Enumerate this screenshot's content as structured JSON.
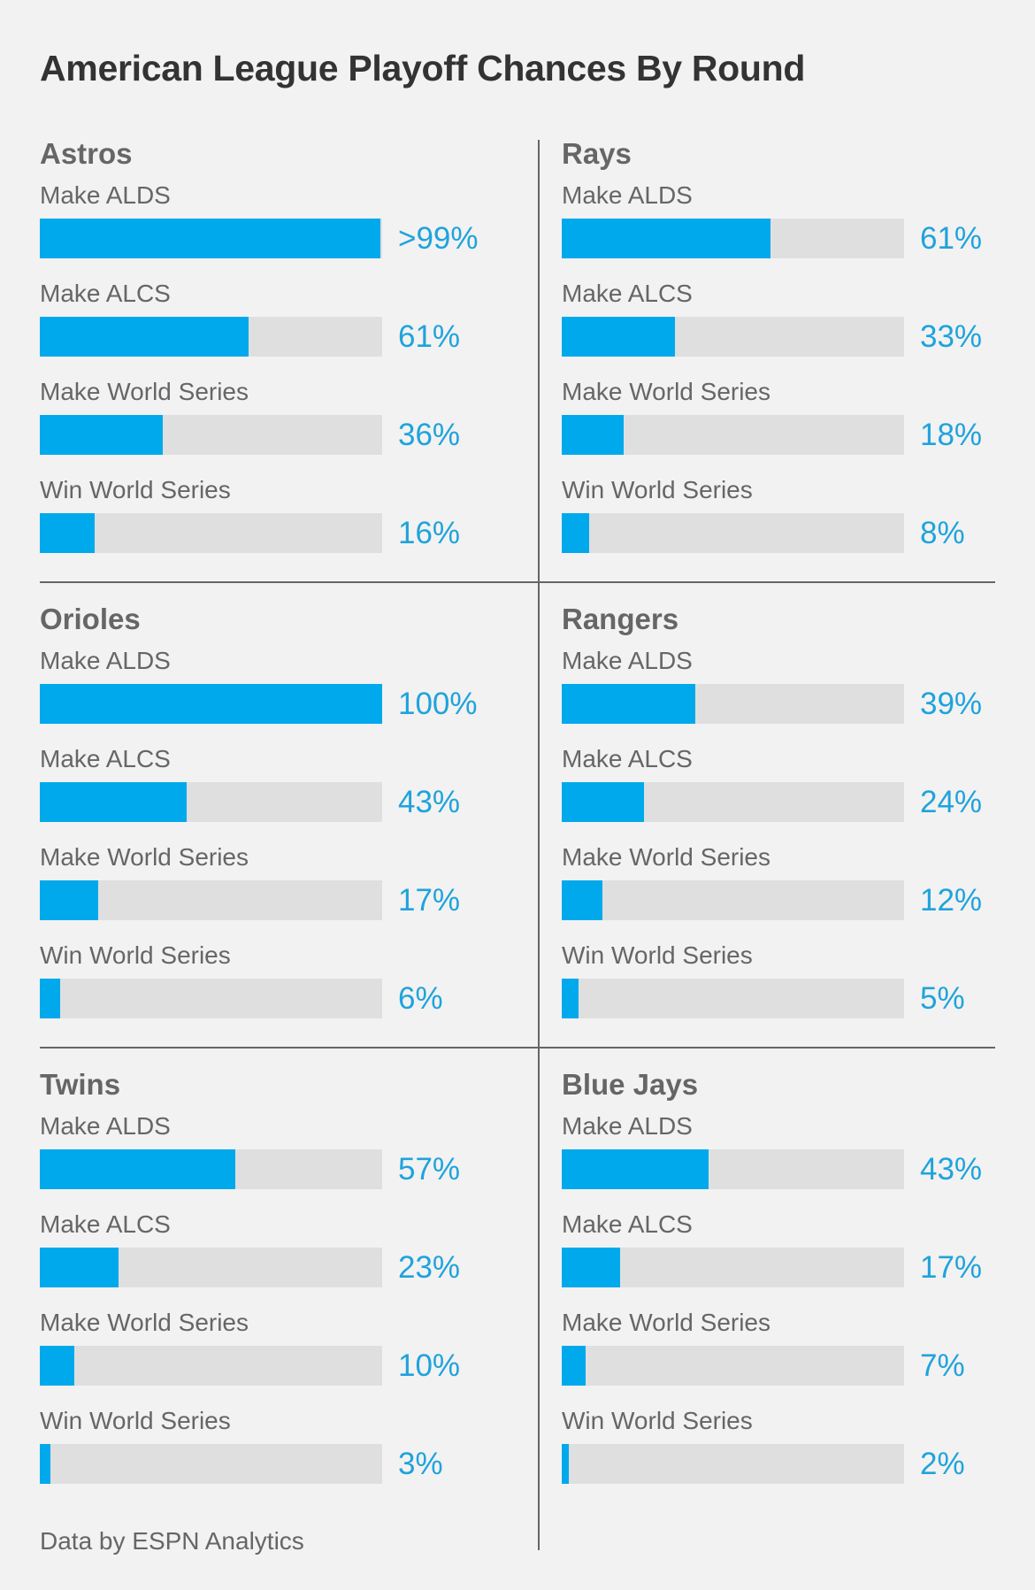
{
  "chart_data": {
    "type": "bar",
    "title": "American League Playoff Chances By Round",
    "footer": "Data by ESPN Analytics",
    "xlim": [
      0,
      100
    ],
    "colors": {
      "fill": "#00a9ec",
      "track": "#dfdfdf",
      "value_text": "#1fa3dc"
    },
    "categories": [
      "Make ALDS",
      "Make ALCS",
      "Make World Series",
      "Win World Series"
    ],
    "teams": [
      {
        "name": "Astros",
        "values": [
          99.5,
          61,
          36,
          16
        ],
        "labels": [
          ">99%",
          "61%",
          "36%",
          "16%"
        ]
      },
      {
        "name": "Rays",
        "values": [
          61,
          33,
          18,
          8
        ],
        "labels": [
          "61%",
          "33%",
          "18%",
          "8%"
        ]
      },
      {
        "name": "Orioles",
        "values": [
          100,
          43,
          17,
          6
        ],
        "labels": [
          "100%",
          "43%",
          "17%",
          "6%"
        ]
      },
      {
        "name": "Rangers",
        "values": [
          39,
          24,
          12,
          5
        ],
        "labels": [
          "39%",
          "24%",
          "12%",
          "5%"
        ]
      },
      {
        "name": "Twins",
        "values": [
          57,
          23,
          10,
          3
        ],
        "labels": [
          "57%",
          "23%",
          "10%",
          "3%"
        ]
      },
      {
        "name": "Blue Jays",
        "values": [
          43,
          17,
          7,
          2
        ],
        "labels": [
          "43%",
          "17%",
          "7%",
          "2%"
        ]
      }
    ]
  }
}
